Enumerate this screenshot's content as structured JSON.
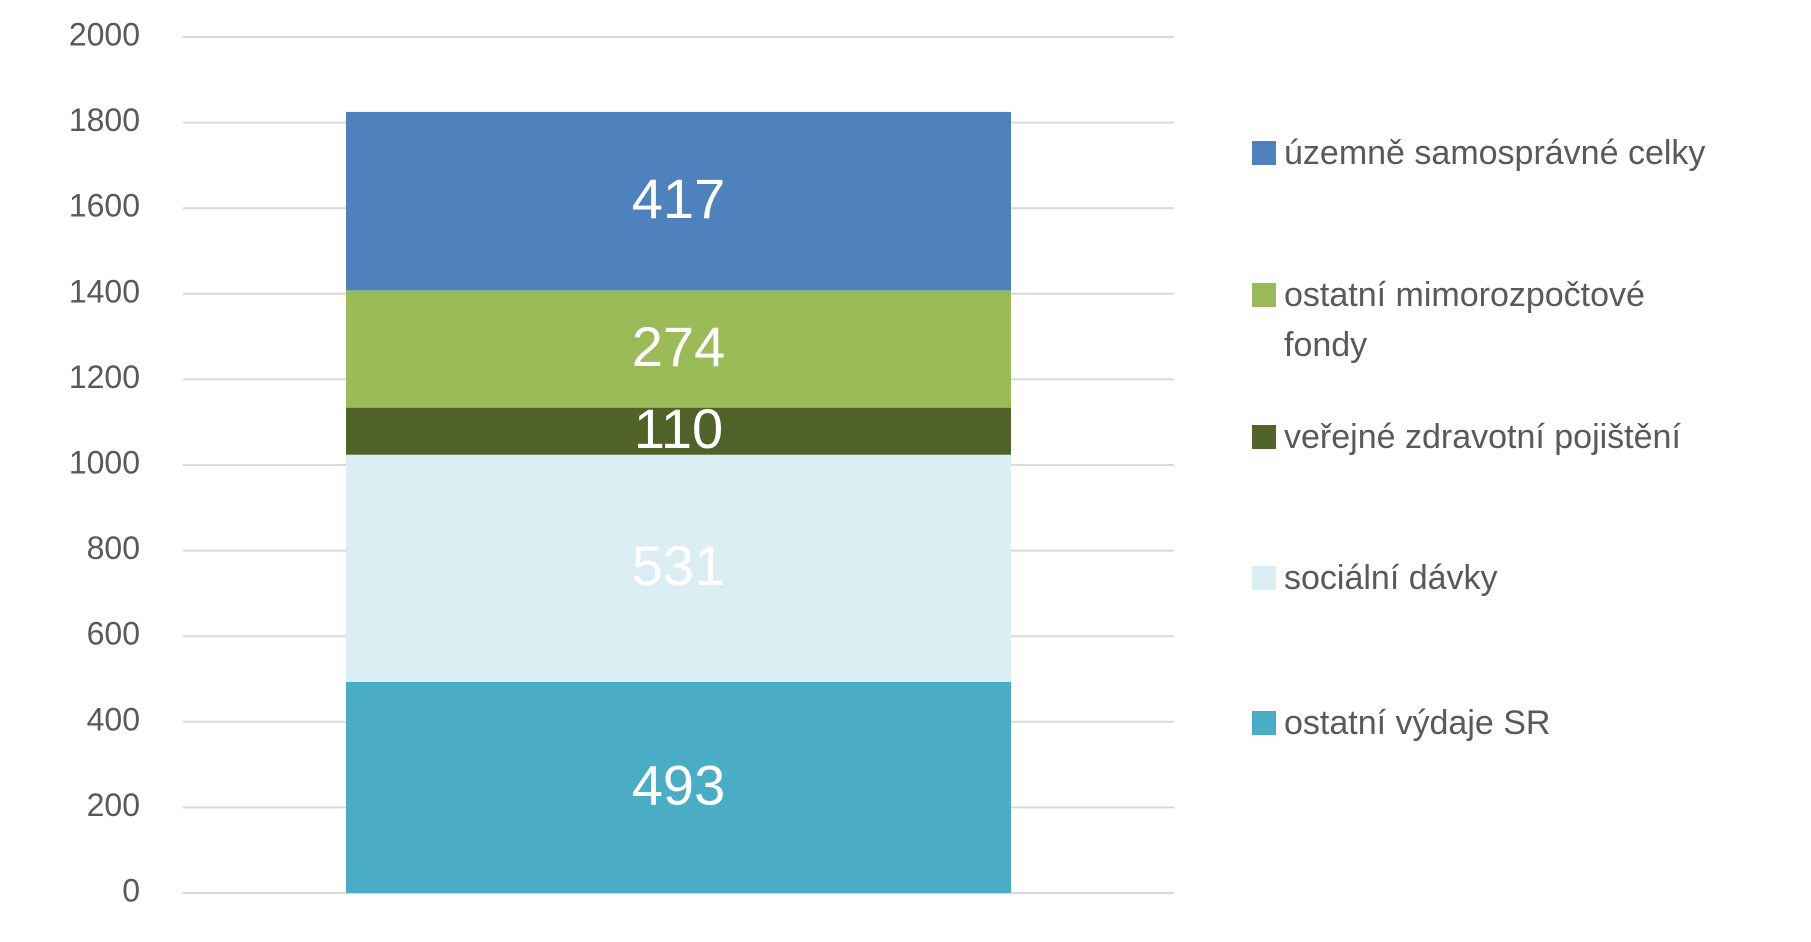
{
  "chart_data": {
    "type": "stacked_bar",
    "categories": [
      null
    ],
    "series": [
      {
        "name": "ostatní výdaje SR",
        "color": "#4bacc6",
        "values": [
          493
        ]
      },
      {
        "name": "sociální dávky",
        "color": "#dbeef4",
        "values": [
          531
        ]
      },
      {
        "name": "veřejné zdravotní pojištění",
        "color": "#4f6228",
        "values": [
          110
        ]
      },
      {
        "name": "ostatní mimorozpočtové fondy",
        "color": "#9bbb59",
        "values": [
          274
        ]
      },
      {
        "name": "územně samosprávné celky",
        "color": "#4f81bd",
        "values": [
          417
        ]
      }
    ],
    "ylim": [
      0,
      2000
    ],
    "yticks": [
      0,
      200,
      400,
      600,
      800,
      1000,
      1200,
      1400,
      1600,
      1800,
      2000
    ],
    "grid": true,
    "legend": "right"
  }
}
